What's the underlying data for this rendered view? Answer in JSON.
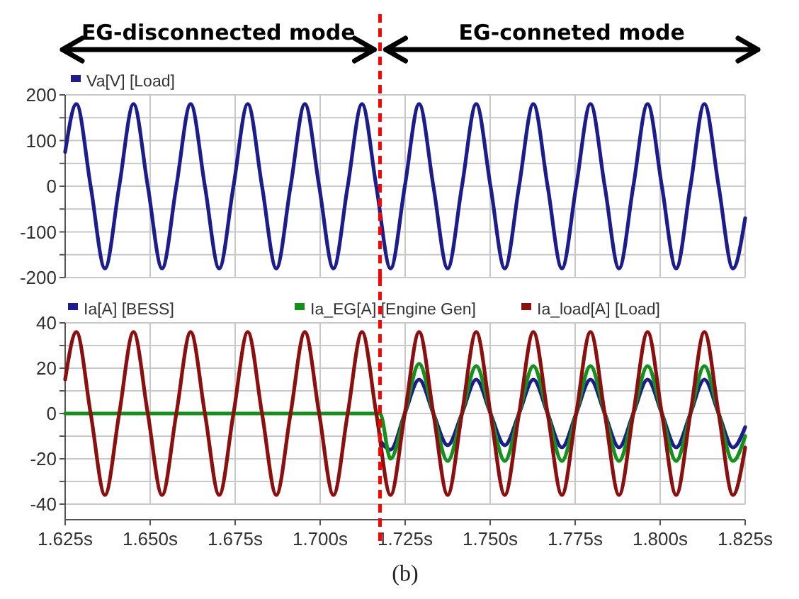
{
  "chart_data": [
    {
      "type": "line",
      "annotations": [
        "EG-disconnected mode",
        "EG-conneted mode"
      ],
      "legend": "top left",
      "grid": true,
      "tick_labels": "y",
      "line_style": "solid",
      "xlim": [
        1.625,
        1.825
      ],
      "xticks": [
        {
          "value": 1.625,
          "label": null
        },
        {
          "value": 1.65,
          "label": null
        },
        {
          "value": 1.675,
          "label": null
        },
        {
          "value": 1.7,
          "label": null
        },
        {
          "value": 1.725,
          "label": null
        },
        {
          "value": 1.75,
          "label": null
        },
        {
          "value": 1.775,
          "label": null
        },
        {
          "value": 1.8,
          "label": null
        },
        {
          "value": 1.825,
          "label": null
        }
      ],
      "ylim": [
        -200,
        200
      ],
      "yticks": [
        -200,
        {
          "value": -150,
          "label": null
        },
        -100,
        {
          "value": -50,
          "label": null
        },
        0,
        {
          "value": 50,
          "label": null
        },
        100,
        {
          "value": 150,
          "label": null
        },
        200
      ],
      "ref_lines": [
        {
          "axis": "x",
          "value": 1.7176,
          "color": "#ff0000",
          "line_style": "dashed"
        }
      ],
      "series": [
        {
          "name": "Va[V]  [Load]",
          "color": "#1c1c8c",
          "x": [
            1.625,
            1.6283,
            1.6325,
            1.6367,
            1.6409,
            1.6451,
            1.6493,
            1.6535,
            1.6577,
            1.6619,
            1.6661,
            1.6703,
            1.6745,
            1.6787,
            1.6829,
            1.6871,
            1.6913,
            1.6955,
            1.6997,
            1.7039,
            1.7081,
            1.7123,
            1.7165,
            1.7207,
            1.7249,
            1.7291,
            1.7333,
            1.7375,
            1.7417,
            1.7459,
            1.7501,
            1.7543,
            1.7585,
            1.7627,
            1.7669,
            1.7711,
            1.7753,
            1.7795,
            1.7837,
            1.7879,
            1.7921,
            1.7963,
            1.8005,
            1.8047,
            1.8089,
            1.813,
            1.8172,
            1.8214,
            1.825
          ],
          "values": [
            75,
            180,
            0,
            -180,
            0,
            180,
            0,
            -180,
            0,
            180,
            0,
            -180,
            0,
            180,
            0,
            -180,
            0,
            180,
            0,
            -180,
            0,
            180,
            0,
            -180,
            0,
            180,
            0,
            -180,
            0,
            180,
            0,
            -180,
            0,
            180,
            0,
            -180,
            0,
            180,
            0,
            -180,
            0,
            180,
            0,
            -180,
            0,
            180,
            0,
            -180,
            -70
          ]
        }
      ]
    },
    {
      "type": "line",
      "annotations": [
        "(b)"
      ],
      "legend": "top",
      "grid": true,
      "line_style": "solid",
      "xlim": [
        1.625,
        1.825
      ],
      "xticks": [
        {
          "value": 1.625,
          "label": "1.625s"
        },
        {
          "value": 1.65,
          "label": "1.650s"
        },
        {
          "value": 1.675,
          "label": "1.675s"
        },
        {
          "value": 1.7,
          "label": "1.700s"
        },
        {
          "value": 1.725,
          "label": "1.725s"
        },
        {
          "value": 1.75,
          "label": "1.750s"
        },
        {
          "value": 1.775,
          "label": "1.775s"
        },
        {
          "value": 1.8,
          "label": "1.800s"
        },
        {
          "value": 1.825,
          "label": "1.825s"
        }
      ],
      "ylim": [
        -40,
        40
      ],
      "yticks": [
        -40,
        {
          "value": -30,
          "label": null
        },
        -20,
        {
          "value": -10,
          "label": null
        },
        0,
        {
          "value": 10,
          "label": null
        },
        20,
        {
          "value": 30,
          "label": null
        },
        40
      ],
      "ref_lines": [
        {
          "axis": "x",
          "value": 1.7176,
          "color": "#ff0000",
          "line_style": "dashed"
        }
      ],
      "series": [
        {
          "name": "Ia[A]  [BESS]",
          "color": "#1c1c8c",
          "x": [
            1.7176,
            1.7207,
            1.7249,
            1.7291,
            1.7333,
            1.7375,
            1.7417,
            1.7459,
            1.7501,
            1.7543,
            1.7585,
            1.7627,
            1.7669,
            1.7711,
            1.7753,
            1.7795,
            1.7837,
            1.7879,
            1.7921,
            1.7963,
            1.8005,
            1.8047,
            1.8089,
            1.813,
            1.8172,
            1.8214,
            1.825
          ],
          "values": [
            -12,
            -16,
            0,
            15,
            0,
            -14,
            0,
            15,
            0,
            -14,
            0,
            15,
            0,
            -15,
            0,
            15,
            0,
            -15,
            0,
            15,
            0,
            -15,
            0,
            15,
            0,
            -15,
            -6
          ]
        },
        {
          "name": "Ia_EG[A]  [Engine Gen]",
          "color": "#12921a",
          "x": [
            1.625,
            1.7176,
            1.7207,
            1.7249,
            1.7291,
            1.7333,
            1.7375,
            1.7417,
            1.7459,
            1.7501,
            1.7543,
            1.7585,
            1.7627,
            1.7669,
            1.7711,
            1.7753,
            1.7795,
            1.7837,
            1.7879,
            1.7921,
            1.7963,
            1.8005,
            1.8047,
            1.8089,
            1.813,
            1.8172,
            1.8214,
            1.825
          ],
          "values": [
            0,
            0,
            -20,
            0,
            22,
            0,
            -21,
            0,
            21,
            0,
            -21,
            0,
            21,
            0,
            -21,
            0,
            21,
            0,
            -21,
            0,
            21,
            0,
            -21,
            0,
            21,
            0,
            -21,
            -10
          ]
        },
        {
          "name": "Ia_load[A]  [Load]",
          "color": "#8b0f0f",
          "x": [
            1.625,
            1.6283,
            1.6325,
            1.6367,
            1.6409,
            1.6451,
            1.6493,
            1.6535,
            1.6577,
            1.6619,
            1.6661,
            1.6703,
            1.6745,
            1.6787,
            1.6829,
            1.6871,
            1.6913,
            1.6955,
            1.6997,
            1.7039,
            1.7081,
            1.7123,
            1.7165,
            1.7207,
            1.7249,
            1.7291,
            1.7333,
            1.7375,
            1.7417,
            1.7459,
            1.7501,
            1.7543,
            1.7585,
            1.7627,
            1.7669,
            1.7711,
            1.7753,
            1.7795,
            1.7837,
            1.7879,
            1.7921,
            1.7963,
            1.8005,
            1.8047,
            1.8089,
            1.813,
            1.8172,
            1.8214,
            1.825
          ],
          "values": [
            15,
            36,
            0,
            -36,
            0,
            36,
            0,
            -36,
            0,
            36,
            0,
            -36,
            0,
            36,
            0,
            -36,
            0,
            36,
            0,
            -36,
            0,
            36,
            0,
            -36,
            0,
            36,
            0,
            -36,
            0,
            36,
            0,
            -36,
            0,
            36,
            0,
            -36,
            0,
            36,
            0,
            -36,
            0,
            36,
            0,
            -36,
            0,
            36,
            0,
            -36,
            -15
          ]
        }
      ]
    }
  ]
}
